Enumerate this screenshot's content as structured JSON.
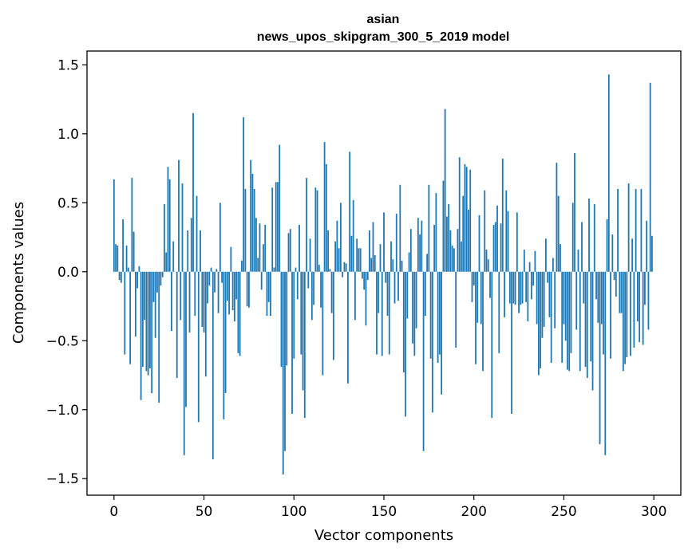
{
  "chart_data": {
    "type": "bar",
    "title": "asian",
    "subtitle": "news_upos_skipgram_300_5_2019 model",
    "xlabel": "Vector components",
    "ylabel": "Components values",
    "xlim": [
      -15,
      315
    ],
    "ylim": [
      -1.62,
      1.6
    ],
    "xticks": [
      0,
      50,
      100,
      150,
      200,
      250,
      300
    ],
    "yticks": [
      -1.5,
      -1.0,
      -0.5,
      0.0,
      0.5,
      1.0,
      1.5
    ],
    "ytick_labels": [
      "−1.5",
      "−1.0",
      "−0.5",
      "0.0",
      "0.5",
      "1.0",
      "1.5"
    ],
    "bar_color": "#1f77b4",
    "grid": false,
    "legend": "none",
    "values": [
      0.67,
      0.2,
      0.19,
      -0.06,
      -0.08,
      0.38,
      -0.6,
      0.19,
      0.03,
      -0.67,
      0.68,
      0.29,
      -0.47,
      -0.12,
      0.04,
      -0.93,
      -0.69,
      -0.35,
      -0.72,
      -0.75,
      -0.7,
      -0.88,
      -0.22,
      -0.48,
      -0.15,
      -0.95,
      -0.1,
      -0.04,
      0.49,
      0.14,
      0.76,
      0.67,
      -0.43,
      0.22,
      0.0,
      -0.77,
      0.81,
      -0.35,
      0.64,
      -1.33,
      -0.98,
      0.3,
      -0.44,
      0.39,
      1.15,
      -0.32,
      0.55,
      -1.09,
      0.3,
      -0.4,
      -0.44,
      -0.76,
      -0.23,
      -0.1,
      0.03,
      -1.36,
      -0.15,
      0.02,
      -0.3,
      0.5,
      -0.08,
      -1.07,
      -0.88,
      -0.21,
      -0.31,
      0.18,
      -0.28,
      -0.36,
      -0.2,
      -0.59,
      -0.61,
      0.08,
      1.12,
      0.6,
      -0.25,
      -0.26,
      0.81,
      0.71,
      0.6,
      0.39,
      0.1,
      0.35,
      -0.13,
      0.2,
      0.34,
      -0.32,
      -0.22,
      -0.32,
      0.61,
      0.03,
      0.65,
      0.65,
      0.92,
      -0.69,
      -1.47,
      -1.3,
      -0.68,
      0.28,
      0.31,
      -1.03,
      -0.63,
      0.03,
      -0.2,
      0.34,
      -0.6,
      -0.86,
      -1.06,
      0.68,
      -0.12,
      0.24,
      -0.35,
      -0.24,
      0.61,
      0.59,
      0.05,
      -0.26,
      -0.75,
      0.94,
      0.78,
      0.3,
      0.02,
      -0.3,
      -0.64,
      0.22,
      0.37,
      0.17,
      0.5,
      -0.04,
      0.07,
      0.06,
      -0.81,
      0.87,
      0.26,
      0.52,
      -0.35,
      0.24,
      0.17,
      0.17,
      -0.05,
      -0.13,
      -0.39,
      -0.06,
      0.3,
      0.1,
      0.36,
      0.12,
      -0.6,
      -0.3,
      0.2,
      -0.61,
      0.43,
      -0.08,
      -0.32,
      -0.6,
      0.22,
      0.09,
      -0.23,
      0.42,
      -0.21,
      0.63,
      0.08,
      -0.73,
      -1.05,
      -0.34,
      0.14,
      0.31,
      -0.52,
      -0.61,
      -0.41,
      0.39,
      0.27,
      0.37,
      -1.3,
      -0.32,
      0.13,
      0.63,
      -0.63,
      -1.02,
      0.34,
      0.57,
      -0.66,
      -0.6,
      -0.89,
      0.66,
      1.18,
      0.4,
      0.49,
      0.3,
      0.19,
      0.17,
      -0.55,
      0.31,
      0.83,
      0.22,
      0.55,
      0.78,
      0.76,
      0.45,
      0.74,
      -0.22,
      -0.1,
      -0.67,
      -0.37,
      0.41,
      -0.38,
      -0.72,
      0.59,
      0.16,
      0.09,
      -0.19,
      -1.06,
      0.34,
      0.36,
      0.48,
      -0.59,
      0.35,
      0.82,
      -0.33,
      0.59,
      0.44,
      -0.23,
      -1.03,
      -0.23,
      -0.24,
      0.43,
      -0.3,
      -0.24,
      -0.23,
      0.16,
      -0.22,
      -0.36,
      0.07,
      -0.2,
      -0.1,
      0.15,
      -0.38,
      -0.75,
      -0.7,
      -0.48,
      -0.4,
      0.24,
      -0.08,
      -0.33,
      -0.66,
      0.1,
      -0.41,
      0.79,
      0.55,
      0.2,
      -0.66,
      -0.38,
      -0.5,
      -0.71,
      -0.72,
      -0.59,
      0.5,
      0.86,
      -0.42,
      0.16,
      -0.72,
      0.36,
      -0.23,
      -0.69,
      -0.77,
      0.53,
      -0.65,
      -0.86,
      0.49,
      -0.2,
      -0.37,
      -1.25,
      -0.38,
      -0.6,
      -1.33,
      0.38,
      1.43,
      -0.63,
      0.27,
      -0.06,
      -0.18,
      0.6,
      -0.3,
      -0.3,
      -0.72,
      -0.67,
      -0.62,
      0.64,
      -0.61,
      0.24,
      -0.55,
      0.6,
      -0.36,
      -0.51,
      0.6,
      -0.53,
      -0.24,
      0.37,
      -0.42,
      1.37,
      0.26
    ]
  }
}
